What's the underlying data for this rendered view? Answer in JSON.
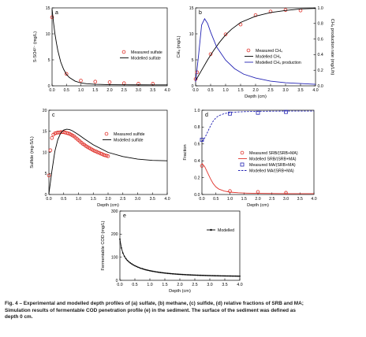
{
  "colors": {
    "measured": "#e0332c",
    "modelled": "#000000",
    "production": "#2323b4",
    "ma": "#2323b4"
  },
  "chart_data": [
    {
      "type": "scatter",
      "panel_letter": "a",
      "xlabel": "",
      "ylabel": "S-SO4²⁻ (mg/L)",
      "xlim": [
        0,
        4
      ],
      "ylim": [
        0,
        15
      ],
      "xticks": [
        "0.0",
        "0.5",
        "1.0",
        "1.5",
        "2.0",
        "2.5",
        "3.0",
        "3.5",
        "4.0"
      ],
      "yticks": [
        "0",
        "5",
        "10",
        "15"
      ],
      "legend": "top-right",
      "series": [
        {
          "name": "Measured sulfate",
          "kind": "points",
          "marker": "circle",
          "color": "measured",
          "x": [
            0,
            0.5,
            1.0,
            1.5,
            2.0,
            2.5,
            3.0,
            3.5
          ],
          "y": [
            13.2,
            2.3,
            1.0,
            0.8,
            0.7,
            0.5,
            0.4,
            0.4
          ]
        },
        {
          "name": "Modelled sulfate",
          "kind": "line",
          "color": "modelled",
          "x": [
            0,
            0.05,
            0.1,
            0.15,
            0.2,
            0.3,
            0.4,
            0.5,
            0.6,
            0.8,
            1.0,
            1.2,
            1.5,
            2.0,
            2.5,
            3.0,
            3.5,
            4.0
          ],
          "y": [
            14.8,
            12.2,
            10.0,
            8.3,
            6.8,
            4.6,
            3.2,
            2.2,
            1.6,
            0.9,
            0.55,
            0.4,
            0.3,
            0.22,
            0.2,
            0.19,
            0.18,
            0.18
          ]
        }
      ]
    },
    {
      "type": "line",
      "panel_letter": "b",
      "xlabel": "Depth (cm)",
      "ylabel": "CH₄ (mg/L)",
      "ylabel_right": "CH₄ production rate (mg/L/h)",
      "xlim": [
        0,
        4
      ],
      "ylim": [
        0,
        15
      ],
      "ylim_right": [
        0,
        1.0
      ],
      "xticks": [
        "0.0",
        "0.5",
        "1.0",
        "1.5",
        "2.0",
        "2.5",
        "3.0",
        "3.5",
        "4.0"
      ],
      "yticks": [
        "0",
        "5",
        "10",
        "15"
      ],
      "yticks_right": [
        "0.0",
        "0.2",
        "0.4",
        "0.6",
        "0.8",
        "1.0"
      ],
      "legend": "bottom-right",
      "series": [
        {
          "name": "Measured CH₄",
          "kind": "points",
          "marker": "circle",
          "color": "measured",
          "x": [
            0,
            0.05,
            0.5,
            1.0,
            1.5,
            2.0,
            2.5,
            3.0,
            3.5
          ],
          "y": [
            1.3,
            2.6,
            6.1,
            9.9,
            11.8,
            13.6,
            14.3,
            14.6,
            14.5
          ]
        },
        {
          "name": "Modelled CH₄",
          "kind": "line",
          "color": "modelled",
          "x": [
            0,
            0.2,
            0.4,
            0.6,
            0.8,
            1.0,
            1.2,
            1.5,
            2.0,
            2.5,
            3.0,
            3.5,
            4.0
          ],
          "y": [
            1.0,
            3.0,
            5.0,
            6.8,
            8.4,
            9.8,
            10.9,
            12.2,
            13.4,
            14.1,
            14.5,
            14.8,
            14.9
          ]
        },
        {
          "name": "Modelled CH₄ production",
          "kind": "line",
          "axis": "right",
          "color": "production",
          "x": [
            0,
            0.1,
            0.2,
            0.3,
            0.4,
            0.5,
            0.7,
            1.0,
            1.3,
            1.6,
            2.0,
            2.5,
            3.0,
            3.5,
            4.0
          ],
          "y": [
            0.05,
            0.4,
            0.78,
            0.86,
            0.8,
            0.69,
            0.5,
            0.33,
            0.22,
            0.15,
            0.1,
            0.06,
            0.04,
            0.03,
            0.02
          ]
        }
      ]
    },
    {
      "type": "scatter",
      "panel_letter": "c",
      "xlabel": "Depth (cm)",
      "ylabel": "Sulfide (mg-S/L)",
      "xlim": [
        0,
        4
      ],
      "ylim": [
        0,
        20
      ],
      "xticks": [
        "0.0",
        "0.5",
        "1.0",
        "1.5",
        "2.0",
        "2.5",
        "3.0",
        "3.5",
        "4.0"
      ],
      "yticks": [
        "0",
        "5",
        "10",
        "15",
        "20"
      ],
      "legend": "top-right",
      "series": [
        {
          "name": "Measured sulfide",
          "kind": "points",
          "marker": "circle",
          "color": "measured",
          "x": [
            0,
            0.05,
            0.1,
            0.15,
            0.2,
            0.25,
            0.3,
            0.35,
            0.4,
            0.45,
            0.5,
            0.55,
            0.6,
            0.65,
            0.7,
            0.75,
            0.8,
            0.85,
            0.9,
            0.95,
            1.0,
            1.05,
            1.1,
            1.15,
            1.2,
            1.25,
            1.3,
            1.35,
            1.4,
            1.45,
            1.5,
            1.55,
            1.6,
            1.65,
            1.7,
            1.75,
            1.8,
            1.85,
            1.9,
            1.95,
            2.0
          ],
          "y": [
            4.5,
            10.5,
            13.4,
            14.2,
            14.5,
            14.6,
            14.7,
            14.7,
            14.8,
            14.8,
            14.8,
            14.7,
            14.6,
            14.5,
            14.4,
            14.2,
            14.0,
            13.8,
            13.5,
            13.2,
            12.9,
            12.6,
            12.3,
            12.0,
            11.8,
            11.5,
            11.3,
            11.1,
            10.9,
            10.7,
            10.5,
            10.3,
            10.2,
            10.0,
            9.9,
            9.7,
            9.6,
            9.4,
            9.3,
            9.2,
            9.1
          ]
        },
        {
          "name": "Modelled sulfide",
          "kind": "line",
          "color": "modelled",
          "x": [
            0,
            0.1,
            0.2,
            0.3,
            0.4,
            0.5,
            0.6,
            0.7,
            0.8,
            1.0,
            1.2,
            1.5,
            2.0,
            2.5,
            3.0,
            3.5,
            4.0
          ],
          "y": [
            0.2,
            5.5,
            10.2,
            13.0,
            14.6,
            15.3,
            15.5,
            15.4,
            15.1,
            14.2,
            13.2,
            11.8,
            10.0,
            9.0,
            8.4,
            8.1,
            8.0
          ]
        }
      ]
    },
    {
      "type": "scatter",
      "panel_letter": "d",
      "xlabel": "Depth (cm)",
      "ylabel": "Fraction",
      "xlim": [
        0,
        4
      ],
      "ylim": [
        0,
        1.0
      ],
      "xticks": [
        "0.0",
        "0.5",
        "1.0",
        "1.5",
        "2.0",
        "2.5",
        "3.0",
        "3.5",
        "4.0"
      ],
      "yticks": [
        "0.0",
        "0.2",
        "0.4",
        "0.6",
        "0.8",
        "1.0"
      ],
      "legend": "bottom-right",
      "series": [
        {
          "name": "Measured SRB/(SRB+MA)",
          "kind": "points",
          "marker": "circle",
          "color": "measured",
          "x": [
            0,
            1.0,
            2.0,
            3.0
          ],
          "y": [
            0.34,
            0.04,
            0.03,
            0.02
          ]
        },
        {
          "name": "Modelled SRB/(SRB+MA)",
          "kind": "line",
          "color": "measured",
          "x": [
            0,
            0.1,
            0.2,
            0.3,
            0.4,
            0.5,
            0.6,
            0.8,
            1.0,
            1.3,
            1.6,
            2.0,
            3.0,
            4.0
          ],
          "y": [
            0.37,
            0.33,
            0.26,
            0.19,
            0.13,
            0.09,
            0.065,
            0.04,
            0.028,
            0.02,
            0.016,
            0.013,
            0.01,
            0.01
          ]
        },
        {
          "name": "Measured MA/(SRB+MA)",
          "kind": "points",
          "marker": "square",
          "color": "ma",
          "x": [
            0,
            1.0,
            2.0,
            3.0
          ],
          "y": [
            0.65,
            0.96,
            0.97,
            0.98
          ]
        },
        {
          "name": "Modelled MA/(SRB+MA)",
          "kind": "line",
          "dash": true,
          "color": "ma",
          "x": [
            0,
            0.1,
            0.2,
            0.3,
            0.4,
            0.5,
            0.6,
            0.8,
            1.0,
            1.3,
            1.6,
            2.0,
            3.0,
            4.0
          ],
          "y": [
            0.63,
            0.67,
            0.74,
            0.81,
            0.87,
            0.91,
            0.935,
            0.96,
            0.972,
            0.98,
            0.984,
            0.987,
            0.99,
            0.99
          ]
        }
      ]
    },
    {
      "type": "line",
      "panel_letter": "e",
      "xlabel": "Depth (cm)",
      "ylabel": "Fermentable COD (mg/L)",
      "xlim": [
        0,
        4
      ],
      "ylim": [
        0,
        300
      ],
      "xticks": [
        "0.0",
        "0.5",
        "1.0",
        "1.5",
        "2.0",
        "2.5",
        "3.0",
        "3.5",
        "4.0"
      ],
      "yticks": [
        "0",
        "100",
        "200",
        "300"
      ],
      "legend": "top-right",
      "series": [
        {
          "name": "Modelled",
          "kind": "line+points",
          "marker": "dot",
          "color": "modelled",
          "x": [
            0,
            0.05,
            0.1,
            0.15,
            0.2,
            0.25,
            0.3,
            0.35,
            0.4,
            0.45,
            0.5,
            0.55,
            0.6,
            0.65,
            0.7,
            0.75,
            0.8,
            0.85,
            0.9,
            0.95,
            1.0,
            1.05,
            1.1,
            1.15,
            1.2,
            1.25,
            1.3,
            1.35,
            1.4,
            1.45,
            1.5,
            1.55,
            1.6,
            1.65,
            1.7,
            1.75,
            1.8,
            1.85,
            1.9,
            1.95,
            2.0,
            2.05,
            2.1,
            2.15,
            2.2,
            2.25,
            2.3,
            2.35,
            2.4,
            2.45,
            2.5,
            2.55,
            2.6,
            2.65,
            2.7,
            2.75,
            2.8,
            2.85,
            2.9,
            2.95,
            3.0,
            3.05,
            3.1,
            3.15,
            3.2,
            3.25,
            3.3,
            3.35,
            3.4,
            3.45,
            3.5,
            3.55,
            3.6,
            3.65,
            3.7,
            3.75,
            3.8,
            3.85,
            3.9,
            3.95,
            4.0
          ],
          "y": [
            178,
            140,
            118,
            104,
            94,
            86,
            80,
            75,
            70.5,
            66.5,
            63,
            60,
            57,
            54.5,
            52,
            50,
            48,
            46,
            44.5,
            43,
            41.5,
            40.2,
            39,
            37.8,
            36.7,
            35.7,
            34.7,
            33.8,
            33,
            32.2,
            31.4,
            30.7,
            30,
            29.4,
            28.8,
            28.2,
            27.7,
            27.2,
            26.7,
            26.2,
            25.8,
            25.4,
            25,
            24.6,
            24.2,
            23.9,
            23.6,
            23.3,
            23,
            22.7,
            22.4,
            22.1,
            21.9,
            21.7,
            21.5,
            21.3,
            21.1,
            20.9,
            20.7,
            20.5,
            20.3,
            20.1,
            20,
            19.8,
            19.7,
            19.5,
            19.4,
            19.3,
            19.1,
            19,
            18.9,
            18.8,
            18.7,
            18.6,
            18.5,
            18.4,
            18.3,
            18.2,
            18.1,
            18,
            17.9
          ]
        }
      ]
    }
  ],
  "caption": {
    "line1": "Fig. 4 – Experimental and modelled depth profiles of (a) sulfate, (b) methane, (c) sulfide, (d) relative fractions of SRB and MA;",
    "line2": "Simulation results of fermentable COD penetration profile (e) in the sediment. The surface of the sediment was defined as",
    "line3": "depth 0 cm."
  }
}
